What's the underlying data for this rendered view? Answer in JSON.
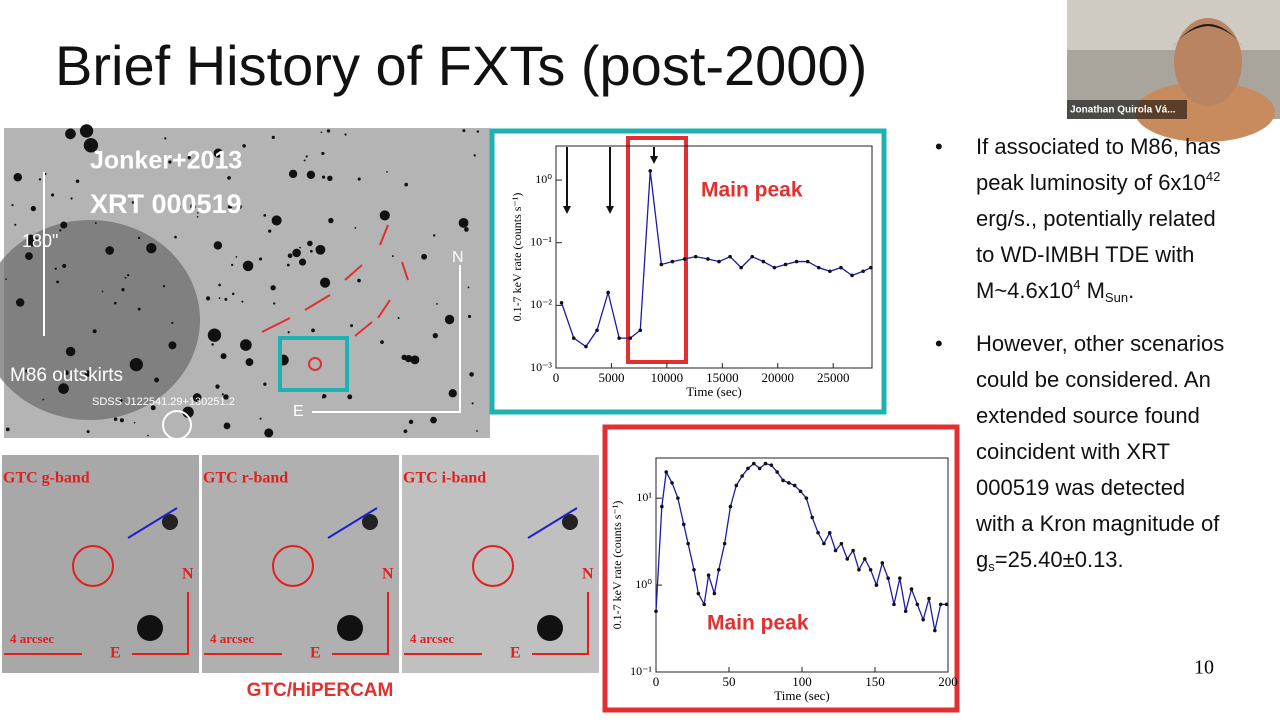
{
  "video": {
    "participant": "Jonathan Quirola Vá..."
  },
  "slide": {
    "title": "Brief History of FXTs (post-2000)",
    "page_number": "10",
    "image_labels": {
      "ref": "Jonker+2013",
      "source": "XRT 000519",
      "scale": "180\"",
      "region": "M86 outskirts",
      "sdss": "SDSS J122541.29+130251.2",
      "north": "N",
      "east": "E"
    },
    "gtc": {
      "bands": [
        "GTC g-band",
        "GTC r-band",
        "GTC i-band"
      ],
      "scale": "4 arcsec",
      "north": "N",
      "east": "E",
      "caption": "GTC/HiPERCAM"
    },
    "plot1": {
      "type": "line",
      "x_label": "Time (sec)",
      "y_label": "0.1-7 keV rate (counts s⁻¹)",
      "log_y": true,
      "color": "#1c1ca8",
      "annotation": "Main peak",
      "xlim": [
        0,
        28500
      ],
      "ylim": [
        0.001,
        3.5
      ],
      "xticks": [
        0,
        5000,
        10000,
        15000,
        20000,
        25000
      ],
      "yticks": [
        {
          "value": 0.001,
          "label": "10⁻³"
        },
        {
          "value": 0.01,
          "label": "10⁻²"
        },
        {
          "value": 0.1,
          "label": "10⁻¹"
        },
        {
          "value": 1,
          "label": "10⁰"
        }
      ],
      "x": [
        500,
        1600,
        2700,
        3700,
        4700,
        5700,
        6700,
        7600,
        8500,
        9500,
        10500,
        11600,
        12600,
        13700,
        14700,
        15700,
        16700,
        17700,
        18700,
        19700,
        20700,
        21700,
        22700,
        23700,
        24700,
        25700,
        26700,
        27700,
        28400
      ],
      "values": [
        0.011,
        0.003,
        0.0022,
        0.004,
        0.016,
        0.003,
        0.003,
        0.004,
        1.4,
        0.045,
        0.05,
        0.055,
        0.06,
        0.055,
        0.05,
        0.06,
        0.04,
        0.06,
        0.05,
        0.04,
        0.045,
        0.05,
        0.05,
        0.04,
        0.035,
        0.04,
        0.03,
        0.035,
        0.04
      ]
    },
    "plot2": {
      "type": "line",
      "x_label": "Time (sec)",
      "y_label": "0.1-7 keV rate (counts s⁻¹)",
      "log_y": true,
      "color": "#1c1ca8",
      "annotation": "Main peak",
      "xlim": [
        0,
        200
      ],
      "ylim": [
        0.1,
        29
      ],
      "xticks": [
        0,
        50,
        100,
        150,
        200
      ],
      "yticks": [
        {
          "value": 0.1,
          "label": "10⁻¹"
        },
        {
          "value": 1,
          "label": "10⁰"
        },
        {
          "value": 10,
          "label": "10¹"
        }
      ],
      "x": [
        0,
        4,
        7,
        11,
        15,
        19,
        22,
        26,
        29,
        33,
        36,
        40,
        43,
        47,
        51,
        55,
        59,
        63,
        67,
        71,
        75,
        79,
        83,
        87,
        91,
        95,
        99,
        103,
        107,
        111,
        115,
        119,
        123,
        127,
        131,
        135,
        139,
        143,
        147,
        151,
        155,
        159,
        163,
        167,
        171,
        175,
        179,
        183,
        187,
        191,
        195,
        199
      ],
      "values": [
        0.5,
        8,
        20,
        15,
        10,
        5,
        3,
        1.5,
        0.8,
        0.6,
        1.3,
        0.8,
        1.5,
        3,
        8,
        14,
        18,
        22,
        25,
        22,
        25,
        24,
        20,
        16,
        15,
        14,
        12,
        10,
        6,
        4,
        3,
        4,
        2.5,
        3,
        2,
        2.5,
        1.5,
        2,
        1.5,
        1,
        1.8,
        1.2,
        0.6,
        1.2,
        0.5,
        0.9,
        0.6,
        0.4,
        0.7,
        0.3,
        0.6,
        0.6
      ]
    },
    "bullets": [
      {
        "lines": [
          [
            {
              "text": "If associated to M86, has"
            }
          ],
          [
            {
              "text": "peak luminosity of 6x10"
            },
            {
              "sup": "42"
            }
          ],
          [
            {
              "text": "erg/s., potentially related"
            }
          ],
          [
            {
              "text": "to WD-IMBH TDE with"
            }
          ],
          [
            {
              "text": "M~4.6x10"
            },
            {
              "sup": "4"
            },
            {
              "text": " M"
            },
            {
              "sub": "Sun"
            },
            {
              "text": "."
            }
          ]
        ]
      },
      {
        "lines": [
          [
            {
              "text": "However, other scenarios"
            }
          ],
          [
            {
              "text": "could be considered. An"
            }
          ],
          [
            {
              "text": "extended source found"
            }
          ],
          [
            {
              "text": "coincident with XRT"
            }
          ],
          [
            {
              "text": "000519 was detected"
            }
          ],
          [
            {
              "text": "with a Kron magnitude of"
            }
          ],
          [
            {
              "text": "g"
            },
            {
              "sub": "s"
            },
            {
              "text": "=25.40±0.13."
            }
          ]
        ]
      }
    ]
  }
}
